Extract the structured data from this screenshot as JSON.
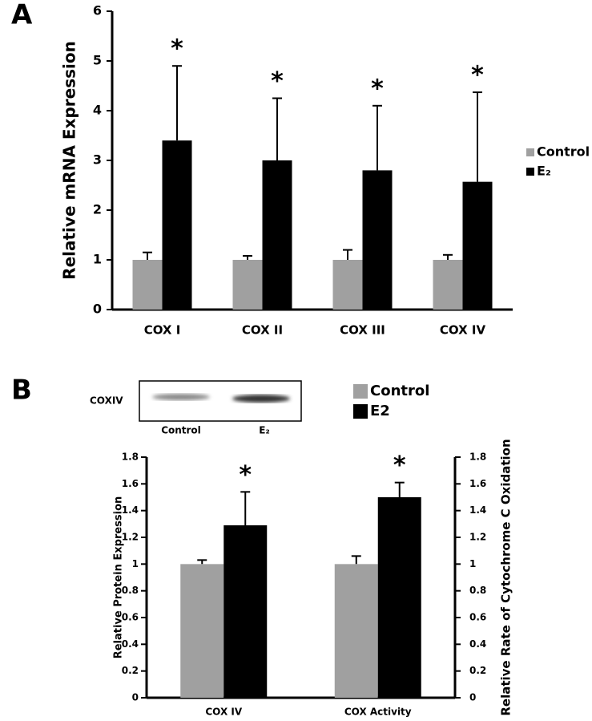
{
  "chart_data": [
    {
      "type": "bar",
      "panel": "A",
      "y_label": "Relative mRNA Expression",
      "categories": [
        "COX I",
        "COX II",
        "COX III",
        "COX IV"
      ],
      "series": [
        {
          "name": "Control",
          "color": "#a0a0a0",
          "values": [
            1,
            1,
            1,
            1
          ],
          "errors": [
            0.15,
            0.08,
            0.2,
            0.1
          ]
        },
        {
          "name": "E₂",
          "color": "#000000",
          "values": [
            3.4,
            3.0,
            2.8,
            2.57
          ],
          "errors": [
            1.5,
            1.25,
            1.3,
            1.8
          ],
          "markers": [
            "*",
            "*",
            "*",
            "*"
          ]
        }
      ],
      "ylim": [
        0,
        6
      ],
      "yticks": [
        0,
        1,
        2,
        3,
        4,
        5,
        6
      ],
      "grid": false,
      "legend": "right"
    },
    {
      "type": "bar",
      "panel": "B",
      "y_label": "Relative Protein Expression",
      "y2_label": "Relative Rate of Cytochrome C Oxidation",
      "inset": {
        "label": "COXIV",
        "lanes": [
          "Control",
          "E₂"
        ]
      },
      "categories": [
        "COX IV",
        "COX Activity"
      ],
      "series": [
        {
          "name": "Control",
          "color": "#a0a0a0",
          "values": [
            1,
            1.0
          ],
          "errors": [
            0.03,
            0.06
          ]
        },
        {
          "name": "E2",
          "color": "#000000",
          "values": [
            1.29,
            1.5
          ],
          "errors": [
            0.25,
            0.11
          ],
          "markers": [
            "*",
            "*"
          ]
        }
      ],
      "ylim": [
        0,
        1.8
      ],
      "yticks": [
        0,
        0.2,
        0.4,
        0.6,
        0.8,
        1,
        1.2,
        1.4,
        1.6,
        1.8
      ],
      "y2lim": [
        0,
        1.8
      ],
      "y2ticks": [
        0,
        0.2,
        0.4,
        0.6,
        0.8,
        1,
        1.2,
        1.4,
        1.6,
        1.8
      ],
      "grid": false,
      "legend": "top right"
    }
  ]
}
